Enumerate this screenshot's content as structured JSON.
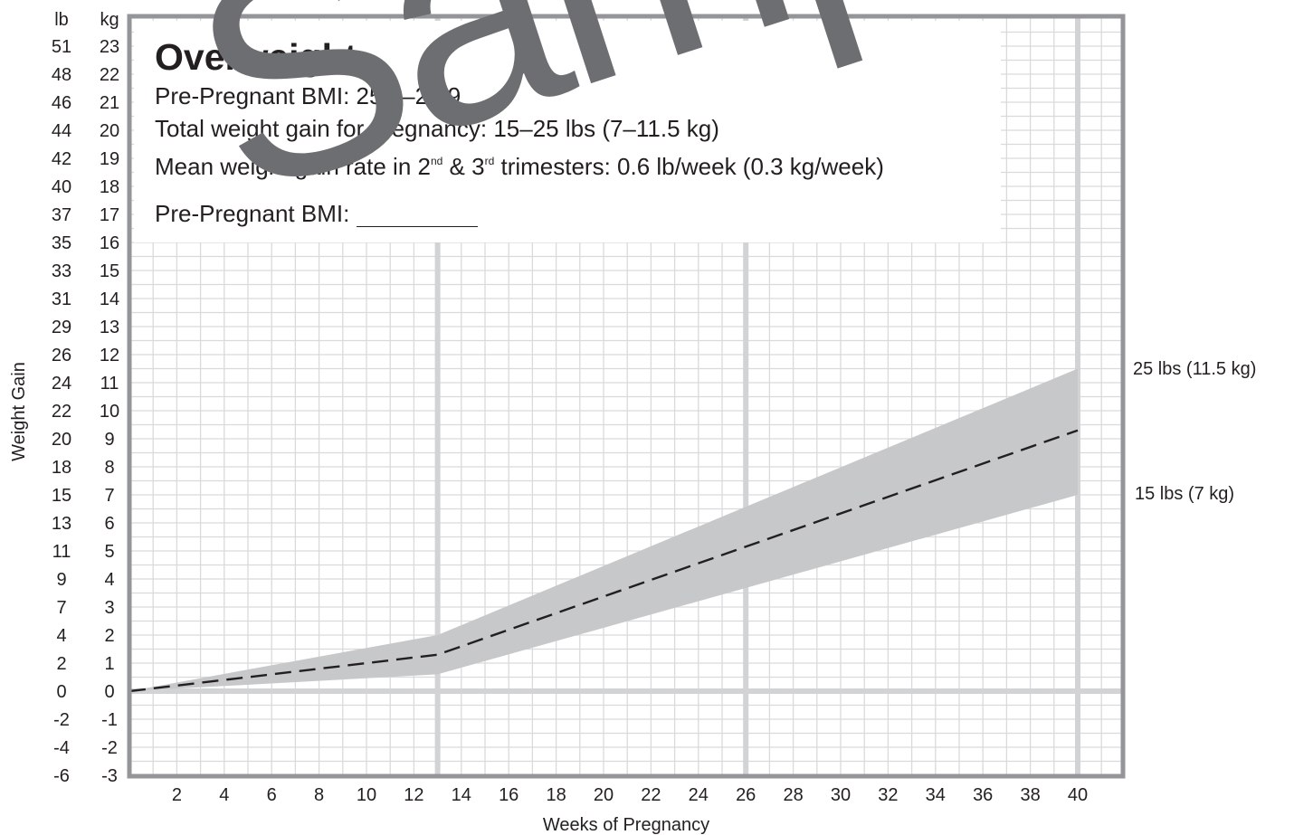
{
  "chart_data": {
    "type": "area",
    "xlabel": "Weeks of Pregnancy",
    "ylabel": "Weight Gain",
    "unit_headers": {
      "lb": "lb",
      "kg": "kg"
    },
    "xlim": [
      0,
      41
    ],
    "ylim_kg": [
      -3,
      23.5
    ],
    "x_ticks": [
      2,
      4,
      6,
      8,
      10,
      12,
      14,
      16,
      18,
      20,
      22,
      24,
      26,
      28,
      30,
      32,
      34,
      36,
      38,
      40
    ],
    "y_ticks_kg": [
      23,
      22,
      21,
      20,
      19,
      18,
      17,
      16,
      15,
      14,
      13,
      12,
      11,
      10,
      9,
      8,
      7,
      6,
      5,
      4,
      3,
      2,
      1,
      0,
      -1,
      -2,
      -3
    ],
    "y_ticks_lb": [
      "51",
      "48",
      "46",
      "44",
      "42",
      "40",
      "37",
      "35",
      "33",
      "31",
      "29",
      "26",
      "24",
      "22",
      "20",
      "18",
      "15",
      "13",
      "11",
      "9",
      "7",
      "4",
      "2",
      "0",
      "-2",
      "-4",
      "-6"
    ],
    "series": [
      {
        "kind": "band",
        "x": [
          0,
          13,
          40
        ],
        "upper_kg": [
          0,
          2,
          11.5
        ],
        "lower_kg": [
          0,
          0.6,
          7
        ]
      },
      {
        "kind": "dashed-line",
        "x": [
          0,
          13,
          40
        ],
        "values_kg": [
          0,
          1.3,
          9.3
        ]
      }
    ],
    "end_labels": [
      "25 lbs (11.5 kg)",
      "15 lbs (7 kg)"
    ],
    "colors": {
      "band": "#c7c8ca",
      "major_grid": "#d1d3d4",
      "minor_grid": "#d9dadb",
      "frame": "#939598",
      "line": "#231f20",
      "watermark": "#6d6e71"
    }
  },
  "info": {
    "title": "Overweight",
    "bmi_range": "Pre-Pregnant BMI: 25.0–29.9",
    "total_gain": "Total weight gain for pregnancy: 15–25 lbs (7–11.5 kg)",
    "rate_pre": "Mean weight gain rate in 2",
    "rate_sup1": "nd",
    "rate_mid": " & 3",
    "rate_sup2": "rd",
    "rate_post": " trimesters: 0.6 lb/week (0.3 kg/week)",
    "bmi_fill_label": "Pre-Pregnant BMI: "
  },
  "watermark": "Sample"
}
